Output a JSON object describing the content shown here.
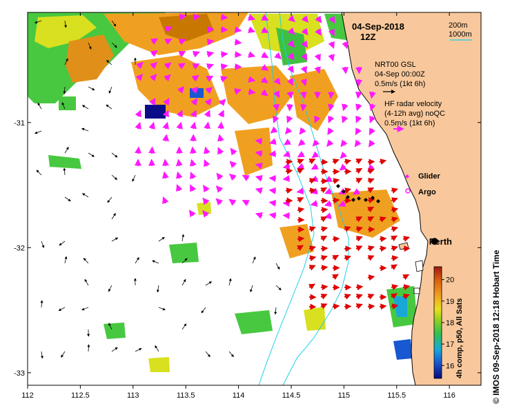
{
  "map": {
    "date": "04-Sep-2018",
    "time": "12Z",
    "credit": "IMOS 09-Sep-2018 12:18 Hobart Time",
    "copyright_symbol": "©"
  },
  "bathymetry": {
    "contour_labels": [
      "200m",
      "1000m"
    ],
    "line_color": "#19d0e8"
  },
  "legend": {
    "gsl_title": "NRT00 GSL",
    "gsl_time": "04-Sep 00:00Z",
    "gsl_scale": "0.5m/s (1kt 6h)",
    "hf_title": "HF radar velocity",
    "hf_avg": "(4-12h avg) noQC",
    "hf_scale": "0.5m/s (1kt 6h)",
    "glider_label": "Glider",
    "argo_label": "Argo",
    "glider_color": "#ff19ff",
    "hf_color": "#ff19ff",
    "gsl_arrow_color": "#e00000"
  },
  "city": {
    "name": "Perth",
    "lon": 115.86,
    "lat": -31.95
  },
  "axes": {
    "x_ticks": [
      "112",
      "112.5",
      "113",
      "113.5",
      "114",
      "114.5",
      "115",
      "115.5",
      "116"
    ],
    "x_values": [
      112,
      112.5,
      113,
      113.5,
      114,
      114.5,
      115,
      115.5,
      116
    ],
    "y_ticks": [
      "-31",
      "-32",
      "-33"
    ],
    "y_values": [
      -31,
      -32,
      -33
    ],
    "lon_range": [
      112,
      116.3
    ],
    "lat_range": [
      -33.1,
      -30.12
    ]
  },
  "colorbar": {
    "title": "4h comp, p50, All Sats",
    "ticks": [
      "16",
      "17",
      "18",
      "19",
      "20"
    ],
    "tick_values": [
      16,
      17,
      18,
      19,
      20
    ],
    "range": [
      15.4,
      20.6
    ]
  },
  "colors": {
    "land": "#f8c89c",
    "orange": "#f0a020",
    "dark_orange": "#c87800",
    "yellow_green": "#d8e020",
    "green": "#40c040",
    "blue": "#1848b8",
    "navy": "#0c0c88"
  }
}
